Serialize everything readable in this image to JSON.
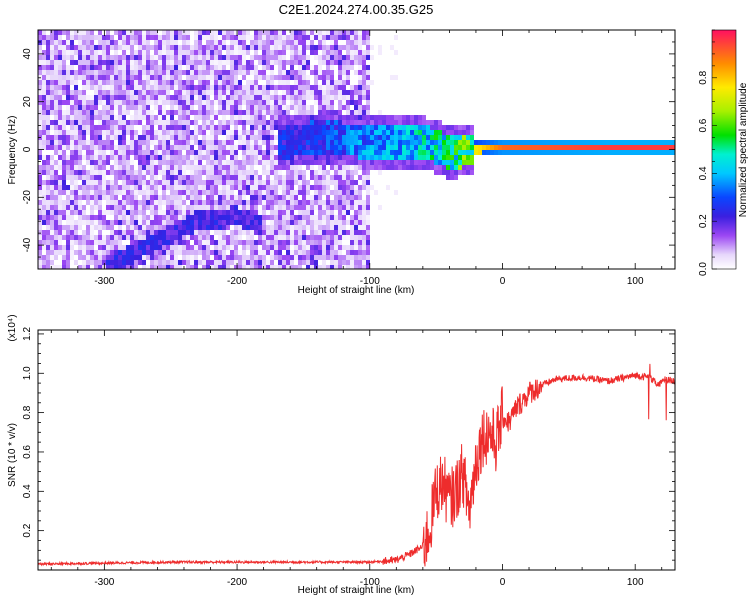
{
  "title": "C2E1.2024.274.00.35.G25",
  "chart_data": [
    {
      "type": "heatmap",
      "name": "spectrogram",
      "xlabel": "Height of straight line (km)",
      "ylabel": "Frequency (Hz)",
      "xlim": [
        -350,
        130
      ],
      "ylim": [
        -50,
        50
      ],
      "x_ticks": [
        -300,
        -200,
        -100,
        0,
        100
      ],
      "y_ticks": [
        -40,
        -20,
        0,
        20,
        40
      ],
      "colorbar": {
        "label": "Normalized spectral amplitude",
        "range": [
          0,
          1
        ],
        "ticks": [
          0.0,
          0.2,
          0.4,
          0.6,
          0.8
        ]
      },
      "features": [
        {
          "name": "noise-region",
          "x_range": [
            -350,
            -100
          ],
          "y_range": [
            -50,
            50
          ],
          "amplitude": 0.15
        },
        {
          "name": "diagonal-track",
          "x": [
            -300,
            -260,
            -230,
            -200,
            -180
          ],
          "y": [
            -50,
            -38,
            -30,
            -28,
            -32
          ],
          "amplitude": 0.2
        },
        {
          "name": "signal-band",
          "x": [
            -170,
            -130,
            -100,
            -60,
            -40,
            0,
            80,
            130
          ],
          "y": [
            3,
            5,
            3,
            3,
            -1,
            1,
            1,
            1
          ],
          "amplitude": [
            0.3,
            0.35,
            0.45,
            0.55,
            0.6,
            0.9,
            0.95,
            0.95
          ]
        }
      ]
    },
    {
      "type": "line",
      "name": "snr",
      "xlabel": "Height of straight line (km)",
      "ylabel": "SNR (10 * v/v)",
      "y_scale_label": "(x10⁴)",
      "xlim": [
        -350,
        130
      ],
      "ylim": [
        0,
        1.22
      ],
      "x_ticks": [
        -300,
        -200,
        -100,
        0,
        100
      ],
      "y_ticks": [
        0.2,
        0.4,
        0.6,
        0.8,
        1.0,
        1.2
      ],
      "series": [
        {
          "name": "SNR",
          "color": "#ee2c2c",
          "x": [
            -350,
            -300,
            -250,
            -200,
            -150,
            -120,
            -100,
            -80,
            -70,
            -60,
            -55,
            -50,
            -45,
            -40,
            -35,
            -30,
            -25,
            -20,
            -15,
            -10,
            -5,
            0,
            5,
            10,
            20,
            30,
            40,
            60,
            80,
            100,
            110,
            118,
            122,
            130
          ],
          "y": [
            0.03,
            0.035,
            0.04,
            0.04,
            0.04,
            0.04,
            0.04,
            0.05,
            0.08,
            0.12,
            0.2,
            0.4,
            0.45,
            0.35,
            0.4,
            0.5,
            0.3,
            0.55,
            0.68,
            0.7,
            0.65,
            0.78,
            0.75,
            0.82,
            0.9,
            0.94,
            0.97,
            0.98,
            0.96,
            0.99,
            0.98,
            0.94,
            0.97,
            0.96
          ]
        }
      ]
    }
  ]
}
